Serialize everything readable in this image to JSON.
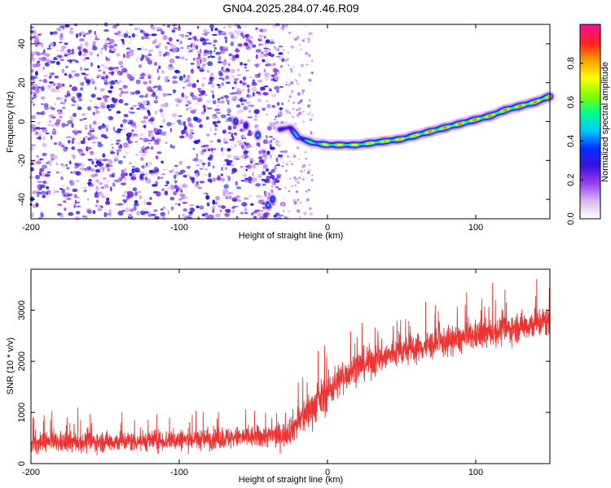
{
  "title": "GN04.2025.284.07.46.R09",
  "chart_data": [
    {
      "type": "heatmap",
      "name": "spectrogram",
      "xlabel": "Height of straight line (km)",
      "ylabel": "Frequency (Hz)",
      "xlim": [
        -200,
        150
      ],
      "ylim": [
        -50,
        50
      ],
      "xticks": [
        -200,
        -100,
        0,
        100
      ],
      "yticks": [
        -40,
        -20,
        0,
        20,
        40
      ],
      "colorbar": {
        "label": "Normalized spectral amplitude",
        "range": [
          0,
          1
        ],
        "ticks": [
          "0.0",
          "0.2",
          "0.4",
          "0.6",
          "0.8"
        ],
        "colors": [
          "#ffffff",
          "#d8b8f0",
          "#9a3ef0",
          "#3a10e0",
          "#0030ff",
          "#00c8ff",
          "#00ff90",
          "#80ff00",
          "#ffff00",
          "#ffa000",
          "#ff2020",
          "#ff1090"
        ]
      },
      "noise_region": {
        "x_range": [
          -200,
          -30
        ],
        "typical_amplitude": 0.25
      },
      "ridge": {
        "x": [
          -32,
          -25,
          -20,
          -10,
          0,
          10,
          20,
          30,
          40,
          50,
          60,
          70,
          80,
          90,
          100,
          110,
          120,
          130,
          140,
          150
        ],
        "y": [
          -4,
          -3,
          -8,
          -11,
          -12,
          -12,
          -12,
          -11,
          -10,
          -9,
          -7,
          -5,
          -3,
          -1,
          1,
          3,
          6,
          8,
          10,
          13
        ],
        "amplitude": [
          0.35,
          0.4,
          0.5,
          0.6,
          0.75,
          0.75,
          0.75,
          0.8,
          0.8,
          0.8,
          0.8,
          0.85,
          0.85,
          0.85,
          0.85,
          0.85,
          0.85,
          0.85,
          0.85,
          0.85
        ]
      },
      "blobs": [
        {
          "x": -62,
          "y": 0,
          "amplitude": 0.35
        },
        {
          "x": -55,
          "y": -2,
          "amplitude": 0.3
        },
        {
          "x": -47,
          "y": -7,
          "amplitude": 0.4
        },
        {
          "x": -40,
          "y": -43,
          "amplitude": 0.4
        },
        {
          "x": -37,
          "y": -40,
          "amplitude": 0.35
        }
      ]
    },
    {
      "type": "line",
      "name": "snr",
      "xlabel": "Height of straight line (km)",
      "ylabel": "SNR (10 * v/v)",
      "xlim": [
        -200,
        150
      ],
      "ylim": [
        0,
        3800
      ],
      "xticks": [
        -200,
        -100,
        0,
        100
      ],
      "yticks": [
        0,
        1000,
        2000,
        3000
      ],
      "color": "#ee3333",
      "trend": {
        "x": [
          -200,
          -150,
          -100,
          -50,
          -30,
          -20,
          -10,
          0,
          10,
          20,
          30,
          50,
          75,
          100,
          125,
          150
        ],
        "mean": [
          400,
          430,
          460,
          520,
          560,
          800,
          1100,
          1400,
          1700,
          1900,
          2000,
          2200,
          2350,
          2500,
          2650,
          2800
        ],
        "spread": [
          350,
          350,
          360,
          380,
          420,
          600,
          650,
          650,
          600,
          550,
          550,
          500,
          500,
          500,
          500,
          550
        ]
      }
    }
  ]
}
